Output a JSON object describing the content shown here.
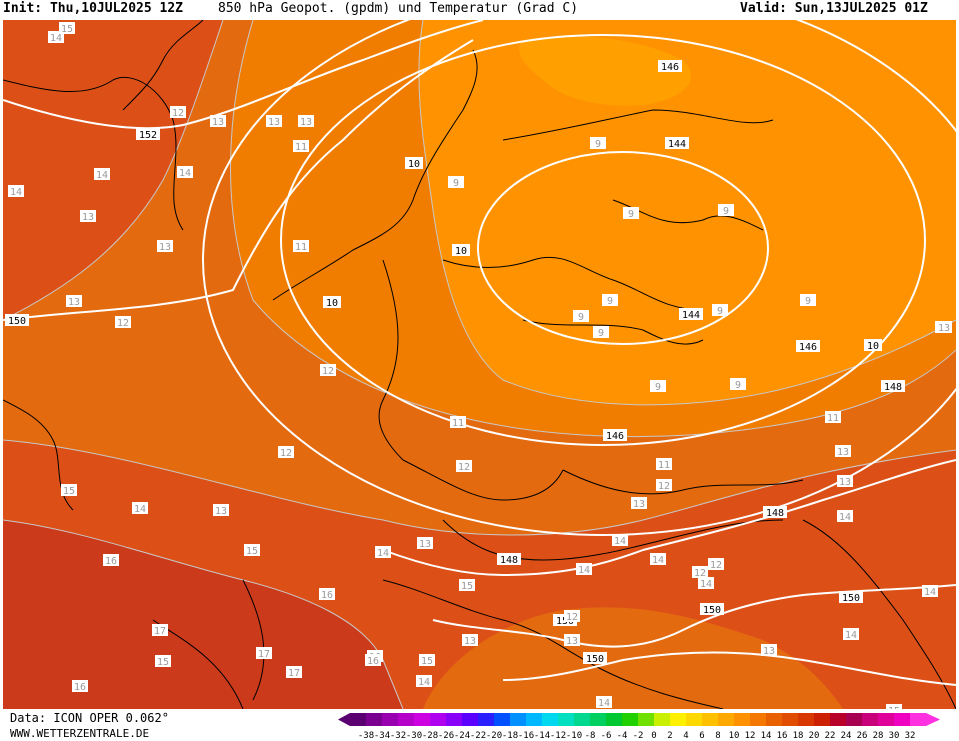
{
  "header": {
    "init": "Init: Thu,10JUL2025 12Z",
    "title": "850 hPa Geopot. (gpdm) und Temperatur (Grad C)",
    "valid": "Valid: Sun,13JUL2025 01Z"
  },
  "footer": {
    "model": "Data: ICON OPER 0.062°",
    "site": "WWW.WETTERZENTRALE.DE"
  },
  "legend": {
    "ticks": [
      "-38",
      "-34",
      "-32",
      "-30",
      "-28",
      "-26",
      "-24",
      "-22",
      "-20",
      "-18",
      "-16",
      "-14",
      "-12",
      "-10",
      "-8",
      "-6",
      "-4",
      "-2",
      "0",
      "2",
      "4",
      "6",
      "8",
      "10",
      "12",
      "14",
      "16",
      "18",
      "20",
      "22",
      "24",
      "26",
      "28",
      "30",
      "32"
    ],
    "colors": [
      "#5a0070",
      "#7a0090",
      "#9900b0",
      "#b400c8",
      "#cc00e0",
      "#b000f0",
      "#8800f8",
      "#5a00ff",
      "#2a20ff",
      "#0050ff",
      "#0090ff",
      "#00b8ff",
      "#00d8f0",
      "#00e0c0",
      "#00d890",
      "#00d060",
      "#00c830",
      "#20d000",
      "#70e000",
      "#c8f000",
      "#fff000",
      "#ffd800",
      "#ffc000",
      "#ffa800",
      "#ff9000",
      "#f47800",
      "#e86000",
      "#e04c00",
      "#d83800",
      "#cc2000",
      "#b80028",
      "#a80050",
      "#c8007a",
      "#e0009a",
      "#f000c0",
      "#ff30e0"
    ]
  },
  "map": {
    "colors": {
      "t16": "#cc3a1c",
      "t14": "#dc5018",
      "t12": "#e46a10",
      "t10": "#f07c00",
      "t9": "#ff9200",
      "t8": "#ffa000"
    },
    "geopotential_labels": [
      "152",
      "146",
      "144",
      "144",
      "146",
      "146",
      "148",
      "148",
      "148",
      "150",
      "150",
      "150",
      "150",
      "150",
      "10",
      "10",
      "10",
      "10"
    ],
    "geopotential_labels_note": "",
    "temperature_labels": [
      "14",
      "14",
      "14",
      "14",
      "14",
      "14",
      "14",
      "14",
      "14",
      "13",
      "13",
      "13",
      "13",
      "13",
      "13",
      "13",
      "13",
      "13",
      "13",
      "12",
      "12",
      "12",
      "12",
      "12",
      "12",
      "12",
      "11",
      "11",
      "11",
      "11",
      "11",
      "11",
      "9",
      "9",
      "9",
      "9",
      "9",
      "9",
      "9",
      "9",
      "9",
      "9",
      "9",
      "15",
      "15",
      "15",
      "15",
      "16",
      "16",
      "16",
      "16",
      "17",
      "17",
      "17",
      "15",
      "15",
      "16",
      "13",
      "13",
      "13",
      "12",
      "12",
      "14",
      "14",
      "14",
      "14",
      "14",
      "14",
      "13",
      "13",
      "15"
    ]
  }
}
